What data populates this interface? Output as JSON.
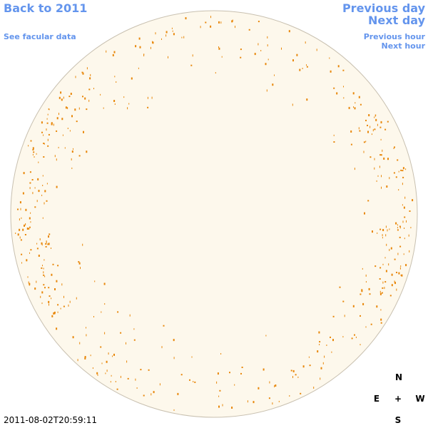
{
  "links": {
    "back": "Back to 2011",
    "facular": "See facular data",
    "prev_day": "Previous day",
    "next_day": "Next day",
    "prev_hour": "Previous hour",
    "next_hour": "Next hour"
  },
  "timestamp": "2011-08-02T20:59:11",
  "compass": {
    "north": "N",
    "east": "E",
    "center": "+",
    "west": "W",
    "south": "S"
  }
}
